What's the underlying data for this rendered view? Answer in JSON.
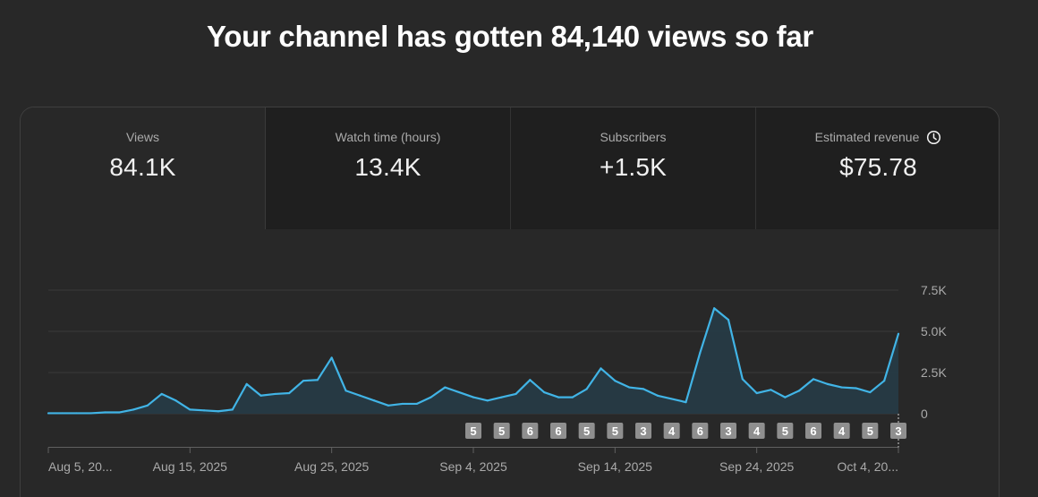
{
  "headline": "Your channel has gotten 84,140 views so far",
  "tabs": [
    {
      "label": "Views",
      "value": "84.1K",
      "active": true
    },
    {
      "label": "Watch time (hours)",
      "value": "13.4K",
      "active": false
    },
    {
      "label": "Subscribers",
      "value": "+1.5K",
      "active": false
    },
    {
      "label": "Estimated revenue",
      "value": "$75.78",
      "active": false,
      "icon": "clock-icon"
    }
  ],
  "colors": {
    "line": "#41b4e6",
    "area": "#263a44",
    "grid": "#3a3a3a",
    "marker_bg": "#8f8f8f"
  },
  "chart_data": {
    "type": "area",
    "ylim": [
      0,
      7500
    ],
    "y_ticks": [
      {
        "value": 0,
        "label": "0"
      },
      {
        "value": 2500,
        "label": "2.5K"
      },
      {
        "value": 5000,
        "label": "5.0K"
      },
      {
        "value": 7500,
        "label": "7.5K"
      }
    ],
    "x_ticks": [
      {
        "index": 0,
        "label": "Aug 5, 20...",
        "anchor": "start"
      },
      {
        "index": 10,
        "label": "Aug 15, 2025",
        "anchor": "middle"
      },
      {
        "index": 20,
        "label": "Aug 25, 2025",
        "anchor": "middle"
      },
      {
        "index": 30,
        "label": "Sep 4, 2025",
        "anchor": "middle"
      },
      {
        "index": 40,
        "label": "Sep 14, 2025",
        "anchor": "middle"
      },
      {
        "index": 50,
        "label": "Sep 24, 2025",
        "anchor": "middle"
      },
      {
        "index": 60,
        "label": "Oct 4, 20...",
        "anchor": "end"
      }
    ],
    "values": [
      30,
      30,
      30,
      30,
      80,
      80,
      250,
      500,
      1200,
      800,
      250,
      200,
      150,
      250,
      1800,
      1100,
      1200,
      1250,
      2000,
      2050,
      3400,
      1400,
      1100,
      800,
      500,
      600,
      600,
      1000,
      1600,
      1300,
      1000,
      800,
      1000,
      1200,
      2050,
      1300,
      1000,
      1000,
      1500,
      2750,
      2000,
      1600,
      1500,
      1100,
      900,
      700,
      3700,
      6400,
      5700,
      2100,
      1250,
      1450,
      1000,
      1400,
      2100,
      1800,
      1600,
      1550,
      1300,
      2000,
      4850
    ],
    "markers": [
      {
        "index": 30,
        "label": "5"
      },
      {
        "index": 32,
        "label": "5"
      },
      {
        "index": 34,
        "label": "6"
      },
      {
        "index": 36,
        "label": "6"
      },
      {
        "index": 38,
        "label": "5"
      },
      {
        "index": 40,
        "label": "5"
      },
      {
        "index": 42,
        "label": "3"
      },
      {
        "index": 44,
        "label": "4"
      },
      {
        "index": 46,
        "label": "6"
      },
      {
        "index": 48,
        "label": "3"
      },
      {
        "index": 50,
        "label": "4"
      },
      {
        "index": 52,
        "label": "5"
      },
      {
        "index": 54,
        "label": "6"
      },
      {
        "index": 56,
        "label": "4"
      },
      {
        "index": 58,
        "label": "5"
      },
      {
        "index": 60,
        "label": "3"
      }
    ]
  }
}
